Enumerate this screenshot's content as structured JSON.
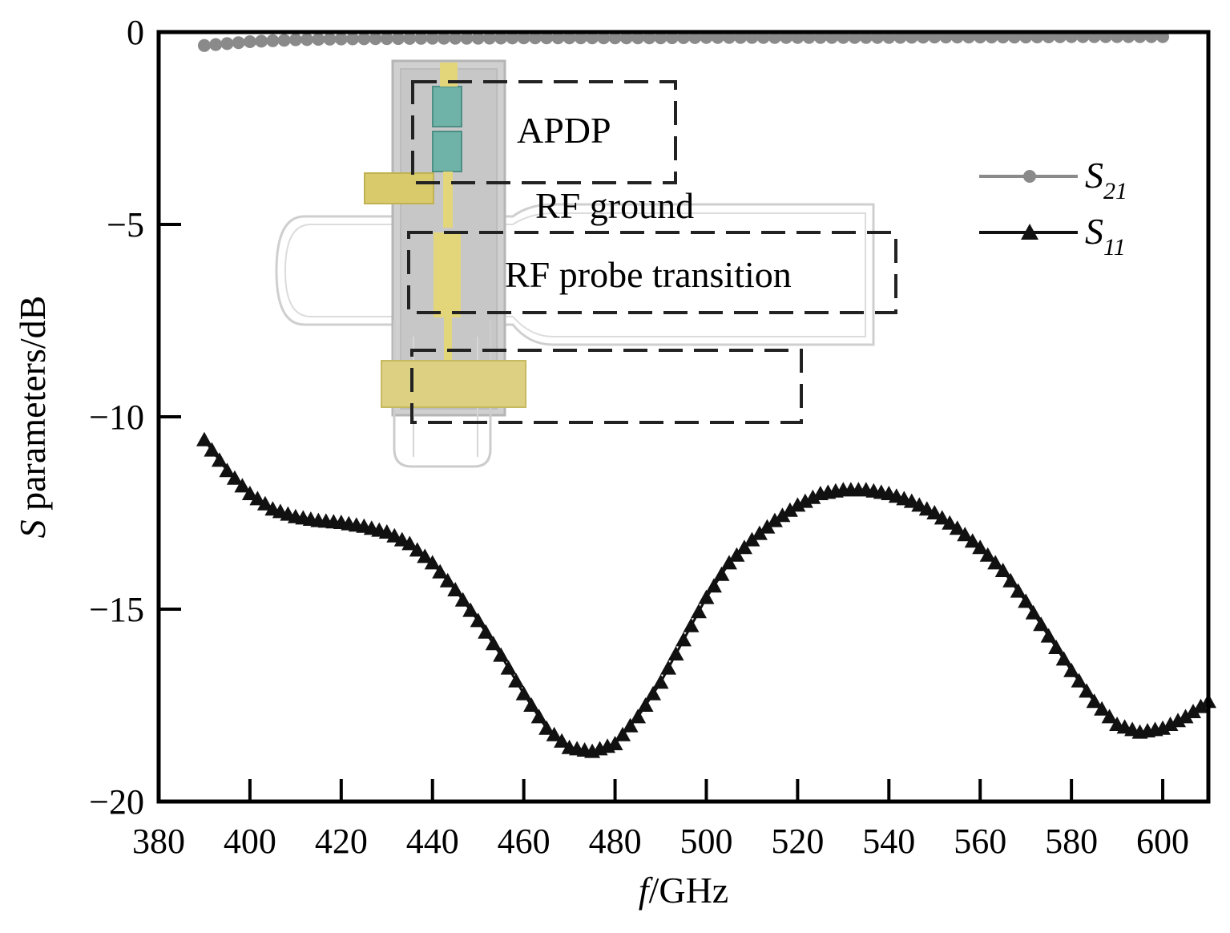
{
  "chart_data": {
    "type": "scatter",
    "xlabel_italic": "f",
    "xlabel_unit": "/GHz",
    "ylabel_italic": "S",
    "ylabel_rest": " parameters/dB",
    "xlim": [
      380,
      610
    ],
    "ylim": [
      -20,
      0
    ],
    "xticks": [
      380,
      400,
      420,
      440,
      460,
      480,
      500,
      520,
      540,
      560,
      580,
      600
    ],
    "yticks": [
      0,
      -5,
      -10,
      -15,
      -20
    ],
    "xtick_labels": [
      "380",
      "400",
      "420",
      "440",
      "460",
      "480",
      "500",
      "520",
      "540",
      "560",
      "580",
      "600"
    ],
    "ytick_labels": [
      "0",
      "−5",
      "−10",
      "−15",
      "−20"
    ],
    "grid": false,
    "legend_placement": "upper-right",
    "series": [
      {
        "name_main": "S",
        "name_sub": "21",
        "marker": "circle",
        "color": "#8a8a8a",
        "x": [
          390,
          400,
          410,
          420,
          430,
          440,
          450,
          460,
          470,
          480,
          490,
          500,
          510,
          520,
          530,
          540,
          550,
          560,
          570,
          580,
          590,
          600
        ],
        "y": [
          -0.35,
          -0.25,
          -0.2,
          -0.18,
          -0.17,
          -0.16,
          -0.16,
          -0.15,
          -0.15,
          -0.15,
          -0.15,
          -0.14,
          -0.14,
          -0.14,
          -0.14,
          -0.14,
          -0.13,
          -0.13,
          -0.13,
          -0.12,
          -0.12,
          -0.12
        ]
      },
      {
        "name_main": "S",
        "name_sub": "11",
        "marker": "triangle",
        "color": "#111111",
        "x": [
          390,
          395,
          400,
          405,
          410,
          415,
          420,
          425,
          430,
          435,
          440,
          445,
          450,
          455,
          460,
          465,
          470,
          475,
          480,
          485,
          490,
          495,
          500,
          505,
          510,
          515,
          520,
          525,
          530,
          535,
          540,
          545,
          550,
          555,
          560,
          565,
          570,
          575,
          580,
          585,
          590,
          595,
          600,
          605,
          610
        ],
        "y": [
          -10.6,
          -11.4,
          -12.0,
          -12.4,
          -12.6,
          -12.7,
          -12.75,
          -12.85,
          -13.0,
          -13.3,
          -13.8,
          -14.5,
          -15.3,
          -16.2,
          -17.2,
          -18.1,
          -18.6,
          -18.7,
          -18.5,
          -17.8,
          -16.9,
          -15.8,
          -14.7,
          -13.8,
          -13.2,
          -12.7,
          -12.3,
          -12.0,
          -11.9,
          -11.9,
          -12.0,
          -12.2,
          -12.5,
          -12.9,
          -13.4,
          -14.0,
          -14.8,
          -15.7,
          -16.6,
          -17.4,
          -18.0,
          -18.2,
          -18.1,
          -17.8,
          -17.4
        ]
      }
    ],
    "annotations": {
      "apdp": "APDP",
      "rf_ground": "RF ground",
      "rf_probe": "RF probe transition"
    }
  }
}
